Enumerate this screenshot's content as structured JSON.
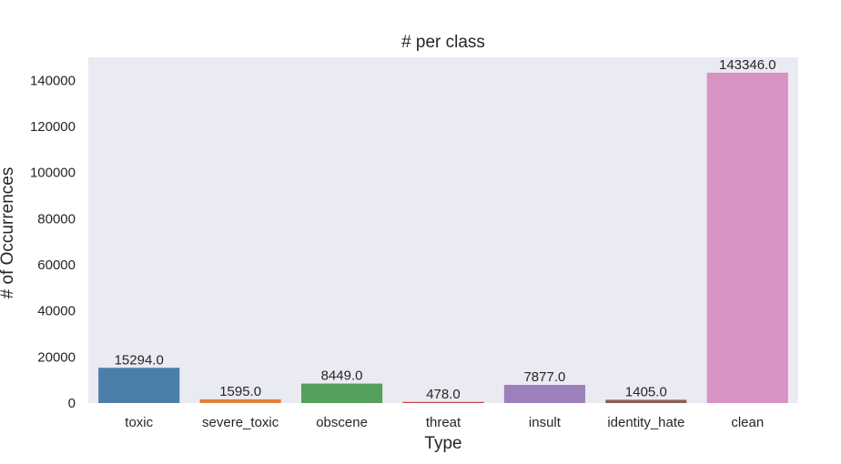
{
  "chart_data": {
    "type": "bar",
    "title": "# per class",
    "xlabel": "Type",
    "ylabel": "# of Occurrences",
    "categories": [
      "toxic",
      "severe_toxic",
      "obscene",
      "threat",
      "insult",
      "identity_hate",
      "clean"
    ],
    "values": [
      15294.0,
      1595.0,
      8449.0,
      478.0,
      7877.0,
      1405.0,
      143346.0
    ],
    "value_labels": [
      "15294.0",
      "1595.0",
      "8449.0",
      "478.0",
      "7877.0",
      "1405.0",
      "143346.0"
    ],
    "ylim": [
      0,
      150000
    ],
    "yticks": [
      0,
      20000,
      40000,
      60000,
      80000,
      100000,
      120000,
      140000
    ],
    "grid": false,
    "colors": [
      "#4c7fa8",
      "#e0803a",
      "#55a05a",
      "#c4444a",
      "#9b80bb",
      "#8c5f55",
      "#d793c4"
    ],
    "background": "#eaeaf2"
  }
}
